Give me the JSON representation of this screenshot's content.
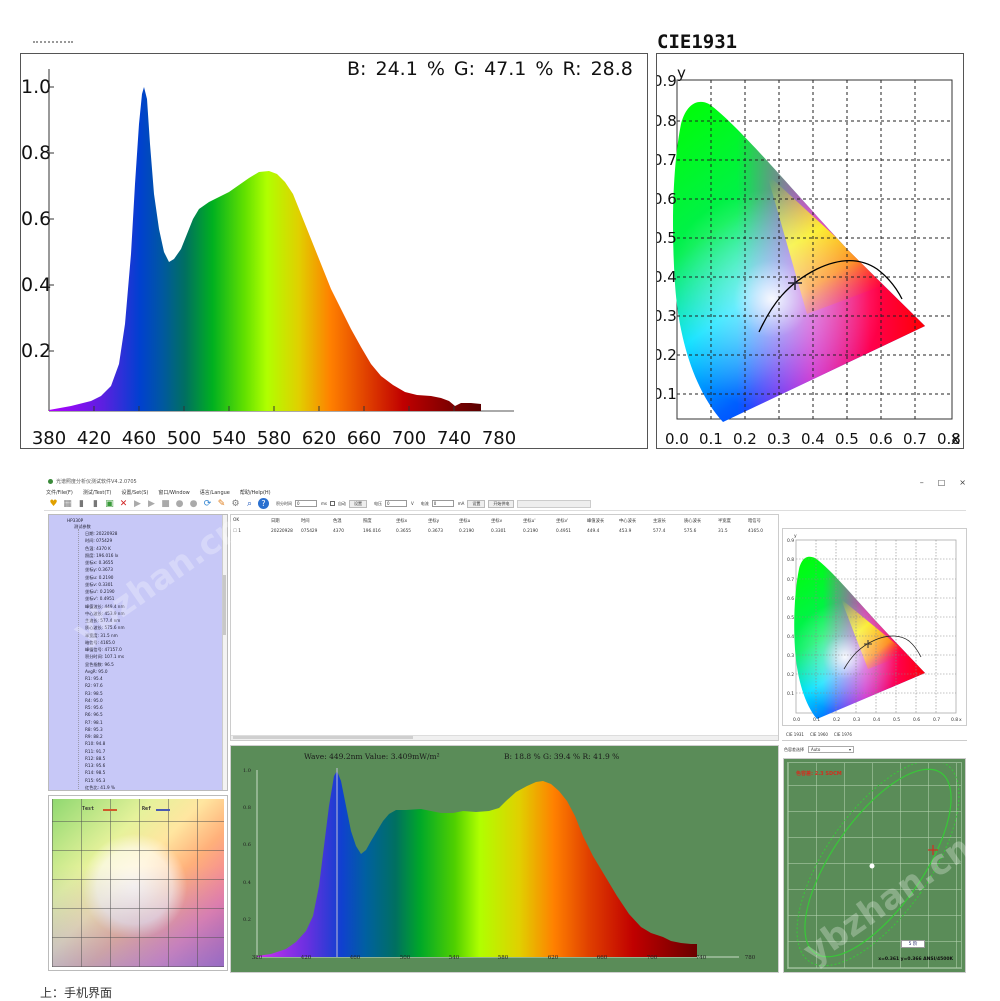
{
  "top_spectrum": {
    "rgb_label": "B: 24.1 %   G: 47.1 %   R: 28.8",
    "y_ticks": [
      "1.0",
      "0.8",
      "0.6",
      "0.4",
      "0.2"
    ],
    "x_ticks": [
      "380",
      "420",
      "460",
      "500",
      "540",
      "580",
      "620",
      "660",
      "700",
      "740",
      "780"
    ]
  },
  "cie_top": {
    "title": "CIE1931",
    "y_label": "y",
    "x_label": "x",
    "y_ticks": [
      "0.9",
      "0.8",
      "0.7",
      "0.6",
      "0.5",
      "0.4",
      "0.3",
      "0.2",
      "0.1"
    ],
    "x_ticks": [
      "0.0",
      "0.1",
      "0.2",
      "0.3",
      "0.4",
      "0.5",
      "0.6",
      "0.7",
      "0.8"
    ]
  },
  "app": {
    "window_title": "光谱照度分析仪测试软件V4.2.0705",
    "window_controls": {
      "minimize": "–",
      "maximize": "□",
      "close": "×"
    },
    "menu": [
      "文件/File(F)",
      "测试/Test(T)",
      "设置/Set(S)",
      "窗口/Window",
      "语言/Langue",
      "帮助/Help(H)"
    ],
    "toolbar": {
      "integration_label": "积分时间",
      "integration_value": "0",
      "integration_unit": "ms",
      "auto_label": "自动",
      "set_button_1": "设置",
      "voltage_label": "电压",
      "voltage_value": "0",
      "voltage_unit": "V",
      "current_label": "电流",
      "current_value": "0",
      "current_unit": "mA",
      "set_button_2": "设置",
      "start_button": "开始供电"
    },
    "tree": {
      "root": "HP330P",
      "group": "测试参数",
      "items": [
        "日期: 20220928",
        "时间: 075429",
        "色温: 4370 K",
        "照度: 196.016 lx",
        "坐标x: 0.3655",
        "坐标y: 0.3673",
        "坐标u: 0.2190",
        "坐标v: 0.3301",
        "坐标u': 0.2190",
        "坐标v': 0.4951",
        "峰值波长: 449.4 nm",
        "中心波长: 453.9 nm",
        "主波长: 577.4 nm",
        "质心波长: 575.6 nm",
        "半宽度: 31.5 nm",
        "暗信号: 4165.0",
        "峰值信号: 47157.0",
        "积分时间: 107.1 ms",
        "显色指数: 96.5",
        "AvgR: 95.0",
        "R1: 95.4",
        "R2: 97.6",
        "R3: 98.5",
        "R4: 95.0",
        "R5: 95.6",
        "R6: 96.5",
        "R7: 98.1",
        "R8: 95.3",
        "R9: 88.2",
        "R10: 94.8",
        "R11: 91.7",
        "R12: 88.5",
        "R13: 95.6",
        "R14: 98.5",
        "R15: 95.3",
        "红色比: 41.9 %"
      ]
    },
    "color_vector": {
      "legend_test": "Test",
      "legend_ref": "Ref",
      "test_color": "#d05a2a",
      "ref_color": "#4a5ab0"
    },
    "table": {
      "headers": [
        "OK",
        "日期",
        "时间",
        "色温",
        "照度",
        "坐标x",
        "坐标y",
        "坐标u",
        "坐标v",
        "坐标u'",
        "坐标v'",
        "峰值波长",
        "中心波长",
        "主波长",
        "质心波长",
        "半宽度",
        "暗信号"
      ],
      "rows": [
        [
          "☐ 1",
          "20220928",
          "075429",
          "4370",
          "196.016",
          "0.3655",
          "0.3673",
          "0.2190",
          "0.3301",
          "0.2190",
          "0.4951",
          "449.4",
          "453.9",
          "577.4",
          "575.6",
          "31.5",
          "4165.0"
        ]
      ]
    },
    "bottom_spectrum": {
      "wave_label": "Wave: 449.2nm  Value: 3.409mW/m²",
      "rgb_label": "B: 18.8 %   G: 39.4 %   R: 41.9 %",
      "y_ticks": [
        "1.0",
        "0.8",
        "0.6",
        "0.4",
        "0.2"
      ],
      "x_ticks": [
        "380",
        "420",
        "460",
        "500",
        "540",
        "580",
        "620",
        "660",
        "700",
        "740",
        "780"
      ],
      "background": "#5a8c58"
    },
    "cie_small": {
      "tabs": [
        "CIE 1931",
        "CIE 1960",
        "CIE 1976"
      ],
      "y_ticks": [
        "0.9",
        "0.8",
        "0.7",
        "0.6",
        "0.5",
        "0.4",
        "0.3",
        "0.2",
        "0.1"
      ],
      "x_ticks": [
        "0.0",
        "0.1",
        "0.2",
        "0.3",
        "0.4",
        "0.5",
        "0.6",
        "0.7",
        "0.8"
      ],
      "x_label": "x",
      "y_label": "y"
    },
    "ellipse": {
      "selector_label": "色容差选择",
      "selector_value": "Auto",
      "title": "色容差: 2.3 SDCM",
      "coords": "x=0.361 y=0.366 ANSI/4500K",
      "step_value": "5 阶"
    }
  },
  "watermarks": [
    "ybzhan.cn",
    "ybzhan.cn"
  ],
  "caption": "上：手机界面"
}
